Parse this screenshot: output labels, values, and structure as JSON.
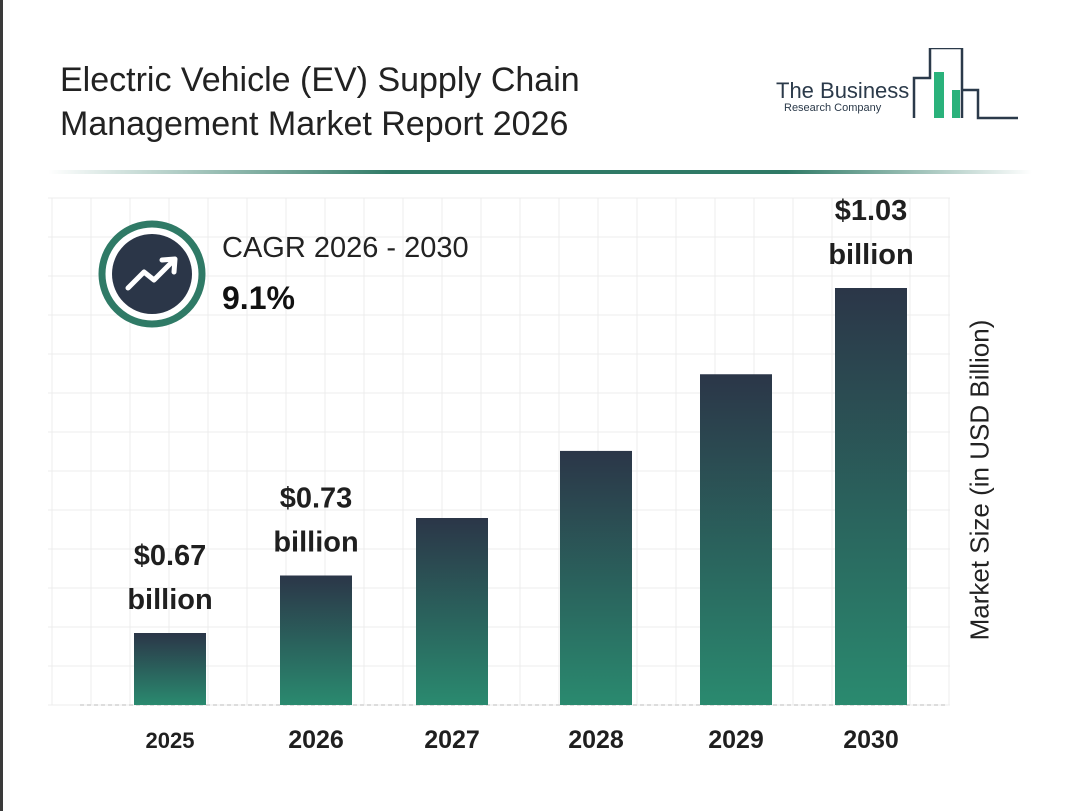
{
  "title_lines": [
    "Electric Vehicle (EV) Supply Chain",
    "Management Market Report 2026"
  ],
  "logo": {
    "line1": "The Business",
    "line2": "Research Company"
  },
  "cagr": {
    "label": "CAGR 2026 - 2030",
    "value": "9.1%",
    "icon": "trend-up-icon"
  },
  "colors": {
    "bar_top": "#2b3648",
    "bar_bottom": "#2a8a6f",
    "accent": "#2f7a66",
    "logo_green": "#2ab27b"
  },
  "chart_data": {
    "type": "bar",
    "categories": [
      "2025",
      "2026",
      "2027",
      "2028",
      "2029",
      "2030"
    ],
    "values": [
      0.67,
      0.73,
      0.79,
      0.86,
      0.94,
      1.03
    ],
    "data_labels": [
      [
        "$0.67",
        "billion"
      ],
      [
        "$0.73",
        "billion"
      ],
      null,
      null,
      null,
      [
        "$1.03",
        "billion"
      ]
    ],
    "ylabel": "Market Size (in USD Billion)",
    "xlabel": "",
    "grid": true
  }
}
